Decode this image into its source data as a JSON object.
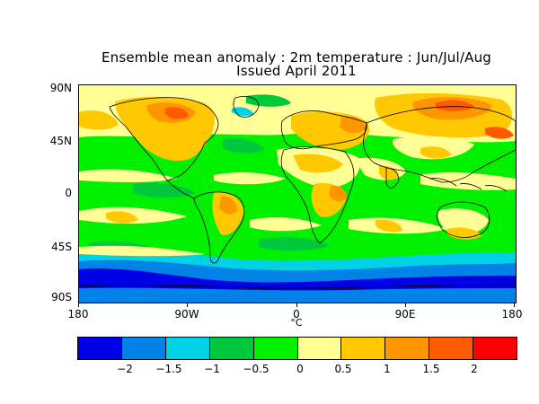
{
  "title": {
    "line1": "Ensemble mean anomaly : 2m temperature : Jun/Jul/Aug",
    "line2": "Issued April 2011"
  },
  "axes": {
    "y_ticks": [
      "90N",
      "45N",
      "0",
      "45S",
      "90S"
    ],
    "x_ticks": [
      "180",
      "90W",
      "0",
      "90E",
      "180"
    ],
    "unit": "°C"
  },
  "colorbar": {
    "labels": [
      "-2",
      "-1.5",
      "-1",
      "-0.5",
      "0",
      "0.5",
      "1",
      "1.5",
      "2"
    ],
    "colors": [
      "#0000e6",
      "#0082e6",
      "#00d2e6",
      "#00c83c",
      "#00f000",
      "#ffff96",
      "#ffc800",
      "#ff9600",
      "#ff5a00",
      "#ff0000"
    ]
  },
  "map_palette": {
    "strong_cold": "#0000e6",
    "cold": "#0082e6",
    "cool": "#00d2e6",
    "slight_cool": "#00c83c",
    "neutral": "#00f000",
    "slight_warm": "#ffff96",
    "warm": "#ffc800",
    "hot": "#ff9600",
    "very_hot": "#ff5a00",
    "extreme": "#ff0000"
  }
}
